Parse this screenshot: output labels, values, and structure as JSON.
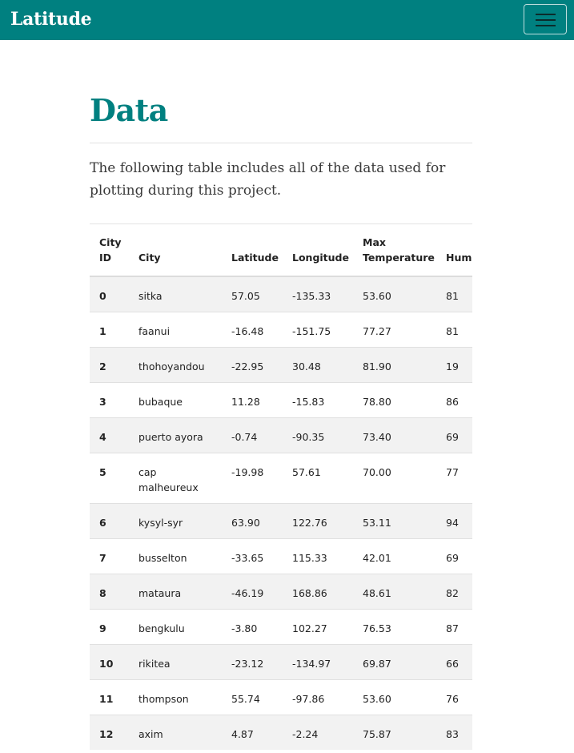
{
  "navbar": {
    "brand": "Latitude",
    "menu_icon": "hamburger-menu-icon"
  },
  "main": {
    "title": "Data",
    "intro": "The following table includes all of the data used for plotting during this project."
  },
  "table": {
    "headers": [
      "City ID",
      "City",
      "Latitude",
      "Longitude",
      "Max Temperature",
      "Humi"
    ],
    "rows": [
      [
        "0",
        "sitka",
        "57.05",
        "-135.33",
        "53.60",
        "81"
      ],
      [
        "1",
        "faanui",
        "-16.48",
        "-151.75",
        "77.27",
        "81"
      ],
      [
        "2",
        "thohoyandou",
        "-22.95",
        "30.48",
        "81.90",
        "19"
      ],
      [
        "3",
        "bubaque",
        "11.28",
        "-15.83",
        "78.80",
        "86"
      ],
      [
        "4",
        "puerto ayora",
        "-0.74",
        "-90.35",
        "73.40",
        "69"
      ],
      [
        "5",
        "cap malheureux",
        "-19.98",
        "57.61",
        "70.00",
        "77"
      ],
      [
        "6",
        "kysyl-syr",
        "63.90",
        "122.76",
        "53.11",
        "94"
      ],
      [
        "7",
        "busselton",
        "-33.65",
        "115.33",
        "42.01",
        "69"
      ],
      [
        "8",
        "mataura",
        "-46.19",
        "168.86",
        "48.61",
        "82"
      ],
      [
        "9",
        "bengkulu",
        "-3.80",
        "102.27",
        "76.53",
        "87"
      ],
      [
        "10",
        "rikitea",
        "-23.12",
        "-134.97",
        "69.87",
        "66"
      ],
      [
        "11",
        "thompson",
        "55.74",
        "-97.86",
        "53.60",
        "76"
      ],
      [
        "12",
        "axim",
        "4.87",
        "-2.24",
        "75.87",
        "83"
      ]
    ]
  },
  "colors": {
    "brand": "#008080",
    "row_stripe": "#f2f2f2"
  }
}
